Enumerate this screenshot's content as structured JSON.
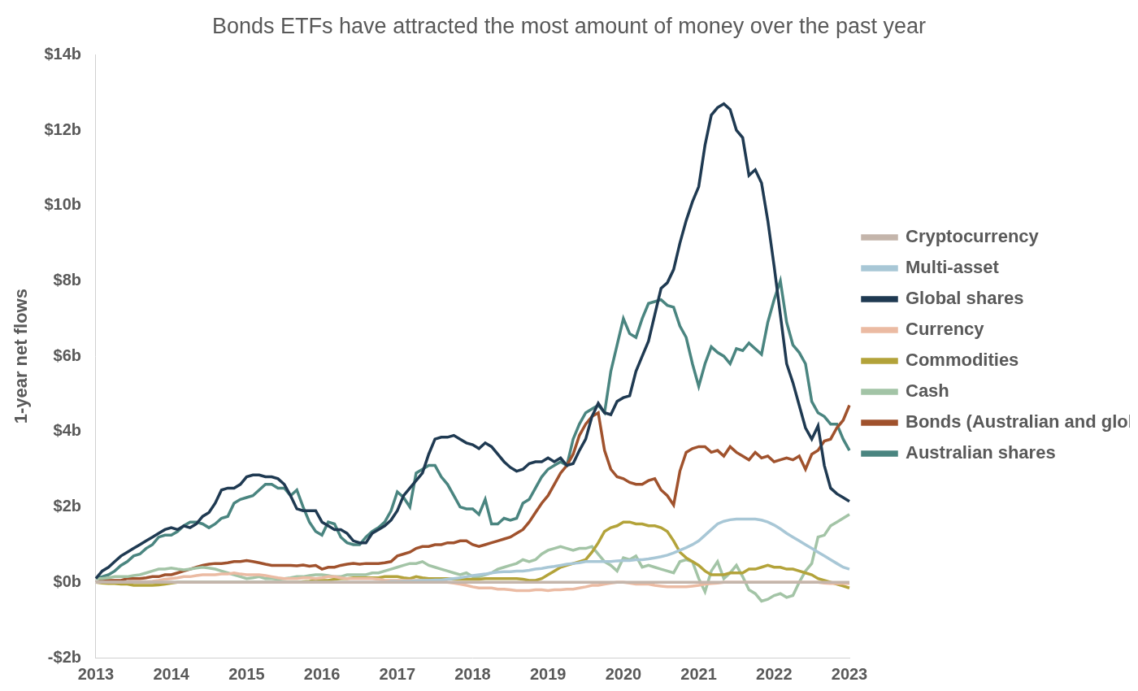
{
  "chart_data": {
    "type": "line",
    "title": "Bonds ETFs have attracted the most amount of money over the past year",
    "y_label": "1-year net flows",
    "categories": [
      "2013",
      null,
      null,
      null,
      null,
      null,
      null,
      null,
      null,
      null,
      null,
      null,
      "2014",
      null,
      null,
      null,
      null,
      null,
      null,
      null,
      null,
      null,
      null,
      null,
      "2015",
      null,
      null,
      null,
      null,
      null,
      null,
      null,
      null,
      null,
      null,
      null,
      "2016",
      null,
      null,
      null,
      null,
      null,
      null,
      null,
      null,
      null,
      null,
      null,
      "2017",
      null,
      null,
      null,
      null,
      null,
      null,
      null,
      null,
      null,
      null,
      null,
      "2018",
      null,
      null,
      null,
      null,
      null,
      null,
      null,
      null,
      null,
      null,
      null,
      "2019",
      null,
      null,
      null,
      null,
      null,
      null,
      null,
      null,
      null,
      null,
      null,
      "2020",
      null,
      null,
      null,
      null,
      null,
      null,
      null,
      null,
      null,
      null,
      null,
      "2021",
      null,
      null,
      null,
      null,
      null,
      null,
      null,
      null,
      null,
      null,
      null,
      "2022",
      null,
      null,
      null,
      null,
      null,
      null,
      null,
      null,
      null,
      null,
      null,
      "2023"
    ],
    "ylim": [
      -2,
      14
    ],
    "yticks": [
      {
        "value": -2,
        "label": "-$2b"
      },
      {
        "value": 0,
        "label": "$0b"
      },
      {
        "value": 2,
        "label": "$2b"
      },
      {
        "value": 4,
        "label": "$4b"
      },
      {
        "value": 6,
        "label": "$6b"
      },
      {
        "value": 8,
        "label": "$8b"
      },
      {
        "value": 10,
        "label": "$10b"
      },
      {
        "value": 12,
        "label": "$12b"
      },
      {
        "value": 14,
        "label": "$14b"
      }
    ],
    "grid": false,
    "legend": "right",
    "series": [
      {
        "name": "Australian shares",
        "color": "#4a8580",
        "values": [
          0.1,
          0.15,
          0.2,
          0.3,
          0.45,
          0.55,
          0.7,
          0.75,
          0.9,
          1.0,
          1.2,
          1.25,
          1.25,
          1.35,
          1.5,
          1.6,
          1.6,
          1.55,
          1.45,
          1.55,
          1.7,
          1.75,
          2.1,
          2.2,
          2.25,
          2.3,
          2.45,
          2.6,
          2.6,
          2.5,
          2.5,
          2.3,
          2.45,
          2.0,
          1.6,
          1.35,
          1.25,
          1.6,
          1.55,
          1.2,
          1.05,
          1.0,
          1.0,
          1.2,
          1.35,
          1.45,
          1.6,
          1.9,
          2.4,
          2.25,
          2.0,
          2.9,
          3.0,
          3.1,
          3.1,
          2.8,
          2.6,
          2.3,
          2.0,
          1.95,
          1.95,
          1.8,
          2.2,
          1.55,
          1.55,
          1.7,
          1.65,
          1.7,
          2.1,
          2.2,
          2.5,
          2.8,
          3.0,
          3.1,
          3.2,
          3.1,
          3.8,
          4.2,
          4.5,
          4.6,
          4.7,
          4.5,
          5.6,
          6.3,
          7.0,
          6.6,
          6.5,
          7.0,
          7.4,
          7.45,
          7.5,
          7.35,
          7.3,
          6.8,
          6.5,
          5.8,
          5.2,
          5.8,
          6.25,
          6.1,
          6.0,
          5.8,
          6.2,
          6.15,
          6.35,
          6.2,
          6.05,
          6.9,
          7.5,
          8.0,
          6.9,
          6.3,
          6.1,
          5.8,
          4.8,
          4.5,
          4.4,
          4.2,
          4.2,
          3.8,
          3.5
        ]
      },
      {
        "name": "Bonds (Australian and global)",
        "color": "#a0522d",
        "values": [
          0.0,
          0.05,
          0.05,
          0.05,
          0.05,
          0.1,
          0.1,
          0.1,
          0.12,
          0.15,
          0.15,
          0.2,
          0.2,
          0.25,
          0.3,
          0.35,
          0.4,
          0.45,
          0.48,
          0.5,
          0.5,
          0.52,
          0.55,
          0.55,
          0.58,
          0.55,
          0.52,
          0.48,
          0.45,
          0.45,
          0.45,
          0.45,
          0.44,
          0.46,
          0.43,
          0.45,
          0.35,
          0.4,
          0.4,
          0.45,
          0.48,
          0.5,
          0.48,
          0.5,
          0.5,
          0.5,
          0.52,
          0.55,
          0.7,
          0.75,
          0.8,
          0.9,
          0.95,
          0.95,
          1.0,
          1.0,
          1.05,
          1.05,
          1.1,
          1.1,
          1.0,
          0.95,
          1.0,
          1.05,
          1.1,
          1.15,
          1.2,
          1.3,
          1.4,
          1.6,
          1.85,
          2.1,
          2.3,
          2.6,
          2.9,
          3.1,
          3.4,
          3.9,
          4.2,
          4.4,
          4.5,
          3.5,
          3.0,
          2.8,
          2.75,
          2.65,
          2.6,
          2.6,
          2.7,
          2.75,
          2.45,
          2.3,
          2.05,
          2.95,
          3.45,
          3.55,
          3.6,
          3.6,
          3.45,
          3.5,
          3.35,
          3.6,
          3.45,
          3.35,
          3.25,
          3.45,
          3.3,
          3.35,
          3.2,
          3.25,
          3.3,
          3.25,
          3.35,
          3.0,
          3.4,
          3.5,
          3.75,
          3.8,
          4.1,
          4.3,
          4.7
        ]
      },
      {
        "name": "Cash",
        "color": "#a3c4a6",
        "values": [
          0.1,
          0.1,
          0.12,
          0.15,
          0.15,
          0.15,
          0.18,
          0.2,
          0.25,
          0.3,
          0.35,
          0.35,
          0.38,
          0.35,
          0.33,
          0.35,
          0.38,
          0.4,
          0.38,
          0.35,
          0.3,
          0.25,
          0.2,
          0.15,
          0.1,
          0.12,
          0.15,
          0.1,
          0.1,
          0.08,
          0.1,
          0.12,
          0.15,
          0.15,
          0.18,
          0.2,
          0.2,
          0.18,
          0.15,
          0.15,
          0.2,
          0.2,
          0.2,
          0.2,
          0.25,
          0.25,
          0.3,
          0.35,
          0.4,
          0.45,
          0.5,
          0.5,
          0.55,
          0.45,
          0.4,
          0.35,
          0.3,
          0.25,
          0.2,
          0.25,
          0.15,
          0.15,
          0.2,
          0.25,
          0.35,
          0.4,
          0.45,
          0.5,
          0.6,
          0.55,
          0.6,
          0.75,
          0.85,
          0.9,
          0.95,
          0.9,
          0.85,
          0.9,
          0.9,
          0.95,
          0.75,
          0.55,
          0.45,
          0.3,
          0.65,
          0.6,
          0.7,
          0.4,
          0.45,
          0.4,
          0.35,
          0.3,
          0.25,
          0.55,
          0.6,
          0.55,
          0.1,
          -0.25,
          0.3,
          0.55,
          0.1,
          0.25,
          0.45,
          0.15,
          -0.2,
          -0.3,
          -0.5,
          -0.45,
          -0.35,
          -0.3,
          -0.4,
          -0.35,
          0.0,
          0.3,
          0.5,
          1.2,
          1.25,
          1.5,
          1.6,
          1.7,
          1.8
        ]
      },
      {
        "name": "Commodities",
        "color": "#b3a33a",
        "values": [
          0,
          -0.02,
          -0.03,
          -0.03,
          -0.05,
          -0.05,
          -0.08,
          -0.08,
          -0.08,
          -0.08,
          -0.07,
          -0.05,
          -0.02,
          0,
          0,
          0,
          0,
          0,
          0,
          0,
          0,
          0,
          0,
          0,
          0,
          0,
          0,
          0,
          0,
          0,
          0,
          0,
          0,
          0.02,
          0.03,
          0.05,
          0.05,
          0.05,
          0.08,
          0.1,
          0.1,
          0.12,
          0.12,
          0.12,
          0.12,
          0.12,
          0.15,
          0.15,
          0.15,
          0.12,
          0.1,
          0.15,
          0.12,
          0.1,
          0.1,
          0.1,
          0.1,
          0.08,
          0.08,
          0.08,
          0.08,
          0.08,
          0.1,
          0.1,
          0.1,
          0.1,
          0.1,
          0.1,
          0.08,
          0.05,
          0.05,
          0.1,
          0.2,
          0.3,
          0.4,
          0.45,
          0.5,
          0.55,
          0.6,
          0.8,
          1.05,
          1.35,
          1.45,
          1.5,
          1.6,
          1.6,
          1.55,
          1.55,
          1.5,
          1.5,
          1.45,
          1.35,
          1.1,
          0.8,
          0.65,
          0.55,
          0.45,
          0.3,
          0.2,
          0.2,
          0.2,
          0.25,
          0.25,
          0.25,
          0.35,
          0.35,
          0.4,
          0.45,
          0.4,
          0.4,
          0.35,
          0.35,
          0.3,
          0.25,
          0.2,
          0.1,
          0.05,
          0.0,
          -0.05,
          -0.1,
          -0.15
        ]
      },
      {
        "name": "Currency",
        "color": "#ebbba3",
        "values": [
          0,
          0,
          0,
          0,
          0,
          0,
          0.02,
          0.02,
          0.02,
          0.03,
          0.05,
          0.08,
          0.1,
          0.12,
          0.15,
          0.15,
          0.18,
          0.2,
          0.2,
          0.2,
          0.22,
          0.22,
          0.25,
          0.22,
          0.2,
          0.2,
          0.2,
          0.18,
          0.15,
          0.12,
          0.1,
          0.1,
          0.1,
          0.12,
          0.12,
          0.1,
          0.12,
          0.15,
          0.15,
          0.12,
          0.1,
          0.1,
          0.1,
          0.1,
          0.1,
          0.08,
          0.05,
          0.05,
          0.05,
          0.05,
          0.05,
          0.05,
          0.05,
          0.05,
          0.05,
          0.05,
          0.0,
          -0.02,
          -0.05,
          -0.08,
          -0.12,
          -0.15,
          -0.15,
          -0.15,
          -0.18,
          -0.18,
          -0.2,
          -0.22,
          -0.22,
          -0.22,
          -0.2,
          -0.2,
          -0.22,
          -0.2,
          -0.2,
          -0.18,
          -0.18,
          -0.15,
          -0.12,
          -0.08,
          -0.08,
          -0.05,
          -0.02,
          0.0,
          0.0,
          -0.02,
          -0.05,
          -0.05,
          -0.05,
          -0.08,
          -0.1,
          -0.12,
          -0.12,
          -0.12,
          -0.12,
          -0.1,
          -0.08,
          -0.05,
          -0.03,
          -0.02,
          0,
          0,
          0,
          0,
          0,
          0,
          0,
          0,
          0,
          0,
          0,
          0,
          0,
          0,
          0,
          0,
          -0.02,
          -0.03,
          -0.03,
          -0.03,
          -0.03
        ]
      },
      {
        "name": "Global shares",
        "color": "#1f3a52",
        "values": [
          0.1,
          0.3,
          0.4,
          0.55,
          0.7,
          0.8,
          0.9,
          1.0,
          1.1,
          1.2,
          1.3,
          1.4,
          1.45,
          1.4,
          1.5,
          1.45,
          1.55,
          1.75,
          1.85,
          2.1,
          2.45,
          2.5,
          2.5,
          2.6,
          2.8,
          2.85,
          2.85,
          2.8,
          2.8,
          2.75,
          2.6,
          2.3,
          1.95,
          1.9,
          1.9,
          1.9,
          1.6,
          1.5,
          1.4,
          1.4,
          1.3,
          1.1,
          1.05,
          1.05,
          1.3,
          1.4,
          1.5,
          1.65,
          1.9,
          2.3,
          2.5,
          2.7,
          2.9,
          3.4,
          3.8,
          3.85,
          3.85,
          3.9,
          3.8,
          3.7,
          3.65,
          3.55,
          3.7,
          3.6,
          3.4,
          3.2,
          3.05,
          2.95,
          3.0,
          3.15,
          3.2,
          3.2,
          3.3,
          3.2,
          3.3,
          3.1,
          3.15,
          3.5,
          3.8,
          4.4,
          4.75,
          4.5,
          4.45,
          4.8,
          4.9,
          4.95,
          5.6,
          6.0,
          6.4,
          7.1,
          7.8,
          7.95,
          8.3,
          9.0,
          9.6,
          10.1,
          10.5,
          11.6,
          12.4,
          12.6,
          12.7,
          12.55,
          12.0,
          11.8,
          10.8,
          10.95,
          10.6,
          9.6,
          8.4,
          7.1,
          5.8,
          5.3,
          4.7,
          4.1,
          3.8,
          4.15,
          3.1,
          2.5,
          2.35,
          2.25,
          2.15
        ]
      },
      {
        "name": "Multi-asset",
        "color": "#a8c7d6",
        "values": [
          0,
          0,
          0,
          0,
          0,
          0,
          0,
          0,
          0,
          0,
          0,
          0,
          0,
          0,
          0,
          0,
          0,
          0,
          0,
          0,
          0,
          0,
          0,
          0,
          0,
          0,
          0,
          0,
          0,
          0,
          0,
          0,
          0,
          0,
          0,
          0,
          0,
          0,
          0,
          0,
          0,
          0,
          0,
          0,
          0,
          0,
          0,
          0.02,
          0.02,
          0.03,
          0.03,
          0.04,
          0.05,
          0.05,
          0.06,
          0.06,
          0.08,
          0.1,
          0.12,
          0.15,
          0.18,
          0.2,
          0.22,
          0.25,
          0.27,
          0.28,
          0.28,
          0.3,
          0.3,
          0.32,
          0.35,
          0.37,
          0.4,
          0.42,
          0.45,
          0.48,
          0.5,
          0.52,
          0.55,
          0.55,
          0.55,
          0.55,
          0.55,
          0.57,
          0.58,
          0.58,
          0.6,
          0.6,
          0.62,
          0.65,
          0.68,
          0.72,
          0.78,
          0.85,
          0.92,
          1.0,
          1.1,
          1.25,
          1.4,
          1.55,
          1.62,
          1.66,
          1.68,
          1.68,
          1.68,
          1.68,
          1.65,
          1.6,
          1.52,
          1.42,
          1.3,
          1.2,
          1.1,
          1.0,
          0.9,
          0.8,
          0.7,
          0.6,
          0.5,
          0.4,
          0.35
        ]
      },
      {
        "name": "Cryptocurrency",
        "color": "#c4b5ab",
        "values": [
          0,
          0,
          0,
          0,
          0,
          0,
          0,
          0,
          0,
          0,
          0,
          0,
          0,
          0,
          0,
          0,
          0,
          0,
          0,
          0,
          0,
          0,
          0,
          0,
          0,
          0,
          0,
          0,
          0,
          0,
          0,
          0,
          0,
          0,
          0,
          0,
          0,
          0,
          0,
          0,
          0,
          0,
          0,
          0,
          0,
          0,
          0,
          0,
          0,
          0,
          0,
          0,
          0,
          0,
          0,
          0,
          0,
          0,
          0,
          0,
          0,
          0,
          0,
          0,
          0,
          0,
          0,
          0,
          0,
          0,
          0,
          0,
          0,
          0,
          0,
          0,
          0,
          0,
          0,
          0,
          0,
          0,
          0,
          0,
          0,
          0,
          0,
          0,
          0,
          0,
          0,
          0,
          0,
          0,
          0,
          0,
          0,
          0,
          0,
          0,
          0,
          0,
          0,
          0,
          0,
          0,
          0,
          0,
          0,
          0,
          0,
          0,
          0,
          0,
          0,
          0,
          0,
          0,
          0,
          0,
          0
        ]
      }
    ]
  }
}
